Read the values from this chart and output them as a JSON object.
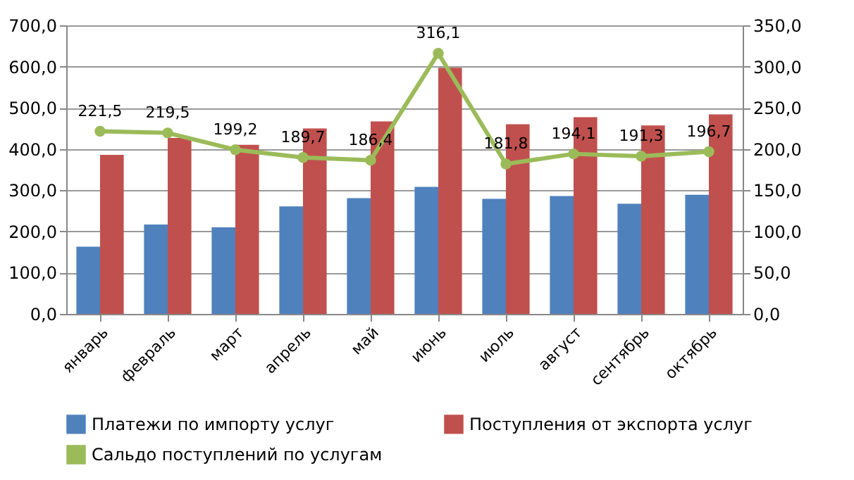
{
  "chart_data": {
    "type": "bar",
    "categories": [
      "январь",
      "февраль",
      "март",
      "апрель",
      "май",
      "июнь",
      "июль",
      "август",
      "сентябрь",
      "октябрь"
    ],
    "series": [
      {
        "name": "Платежи по импорту услуг",
        "color": "#4f81bd",
        "values": [
          163,
          217,
          210,
          261,
          281,
          308,
          279,
          286,
          267,
          289
        ]
      },
      {
        "name": "Поступления от экспорта услуг",
        "color": "#c0504d",
        "values": [
          386,
          427,
          410,
          450,
          467,
          597,
          460,
          477,
          457,
          484
        ]
      },
      {
        "name": "Сальдо поступлений по услугам",
        "type": "line",
        "axis": "y2",
        "marker": "circle",
        "color": "#9bbb59",
        "values": [
          221.5,
          219.5,
          199.2,
          189.7,
          186.4,
          316.1,
          181.8,
          194.1,
          191.3,
          196.7
        ],
        "value_labels": [
          "221,5",
          "219,5",
          "199,2",
          "189,7",
          "186,4",
          "316,1",
          "181,8",
          "194,1",
          "191,3",
          "196,7"
        ]
      }
    ],
    "ylim": [
      0,
      700
    ],
    "yticks": [
      {
        "value": 0,
        "label": "0,0"
      },
      {
        "value": 100,
        "label": "100,0"
      },
      {
        "value": 200,
        "label": "200,0"
      },
      {
        "value": 300,
        "label": "300,0"
      },
      {
        "value": 400,
        "label": "400,0"
      },
      {
        "value": 500,
        "label": "500,0"
      },
      {
        "value": 600,
        "label": "600,0"
      },
      {
        "value": 700,
        "label": "700,0"
      }
    ],
    "y2lim": [
      0,
      350
    ],
    "y2ticks": [
      {
        "value": 0,
        "label": "0,0"
      },
      {
        "value": 50,
        "label": "50,0"
      },
      {
        "value": 100,
        "label": "100,0"
      },
      {
        "value": 150,
        "label": "150,0"
      },
      {
        "value": 200,
        "label": "200,0"
      },
      {
        "value": 250,
        "label": "250,0"
      },
      {
        "value": 300,
        "label": "300,0"
      },
      {
        "value": 350,
        "label": "350,0"
      }
    ],
    "grid": "y",
    "legend": "bottom"
  }
}
